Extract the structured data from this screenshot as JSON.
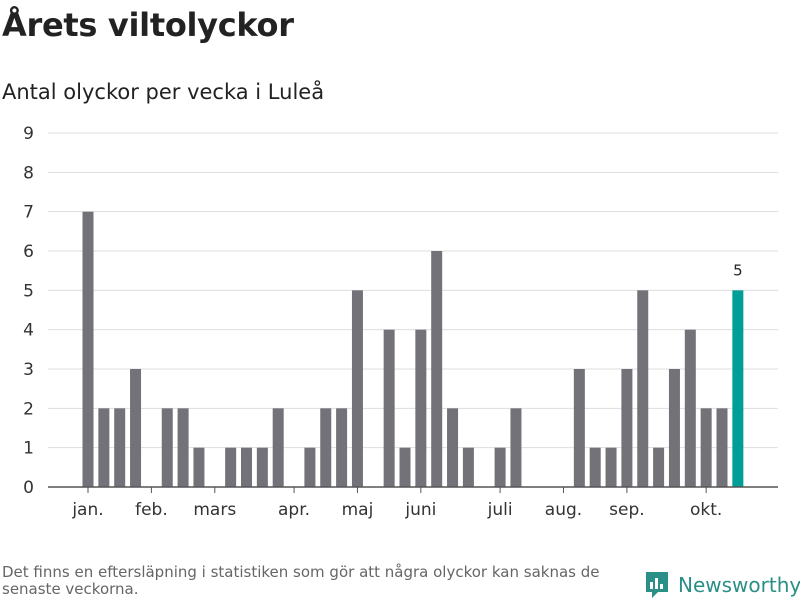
{
  "title": "Årets viltolyckor",
  "subtitle": "Antal olyckor per vecka i Luleå",
  "footnote": "Det finns en eftersläpning i statistiken som gör att några olyckor kan saknas de senaste veckorna.",
  "brand": "Newsworthy",
  "colors": {
    "bar": "#737278",
    "highlight": "#009e96",
    "brand": "#2a8f86",
    "grid": "#dddddd",
    "axis": "#555555"
  },
  "chart_data": {
    "type": "bar",
    "x": [
      1,
      2,
      3,
      4,
      5,
      6,
      7,
      8,
      9,
      10,
      11,
      12,
      13,
      14,
      15,
      16,
      17,
      18,
      19,
      20,
      21,
      22,
      23,
      24,
      25,
      26,
      27,
      28,
      29,
      30,
      31,
      32,
      33,
      34,
      35,
      36,
      37,
      38,
      39,
      40,
      41,
      42
    ],
    "values": [
      7,
      2,
      2,
      3,
      0,
      2,
      2,
      1,
      0,
      1,
      1,
      1,
      2,
      0,
      1,
      2,
      2,
      5,
      0,
      4,
      1,
      4,
      6,
      2,
      1,
      0,
      1,
      2,
      0,
      0,
      0,
      3,
      1,
      1,
      3,
      5,
      1,
      3,
      4,
      2,
      2,
      5
    ],
    "ylim": [
      0,
      9
    ],
    "yticks": [
      0,
      1,
      2,
      3,
      4,
      5,
      6,
      7,
      8,
      9
    ],
    "month_labels": [
      {
        "label": "jan.",
        "week": 1
      },
      {
        "label": "feb.",
        "week": 5
      },
      {
        "label": "mars",
        "week": 9
      },
      {
        "label": "apr.",
        "week": 14
      },
      {
        "label": "maj",
        "week": 18
      },
      {
        "label": "juni",
        "week": 22
      },
      {
        "label": "juli",
        "week": 27
      },
      {
        "label": "aug.",
        "week": 31
      },
      {
        "label": "sep.",
        "week": 35
      },
      {
        "label": "okt.",
        "week": 40
      }
    ],
    "highlight_index": 41,
    "data_label": "5",
    "grid": true
  }
}
